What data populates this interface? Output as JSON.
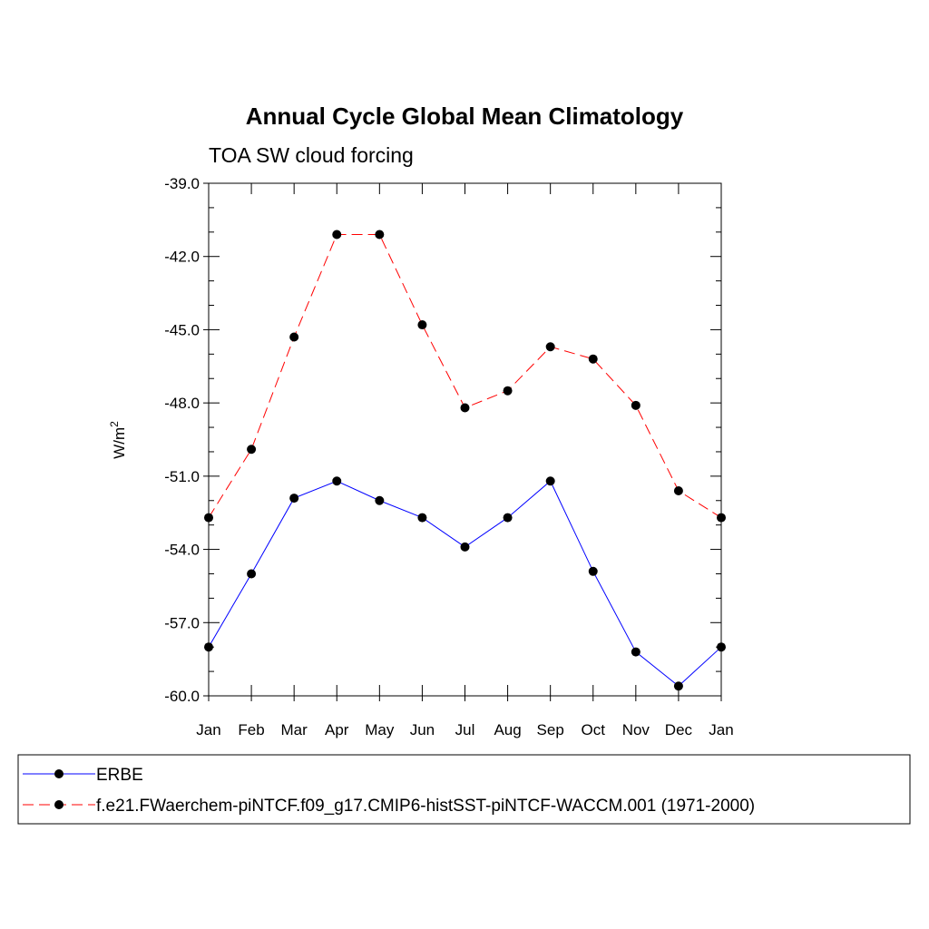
{
  "chart_data": {
    "type": "line",
    "title": "Annual Cycle Global Mean Climatology",
    "subtitle": "TOA SW cloud forcing",
    "xlabel": "",
    "ylabel": "W/m",
    "ylabel_superscript": "2",
    "categories": [
      "Jan",
      "Feb",
      "Mar",
      "Apr",
      "May",
      "Jun",
      "Jul",
      "Aug",
      "Sep",
      "Oct",
      "Nov",
      "Dec",
      "Jan"
    ],
    "ylim": [
      -60.0,
      -39.0
    ],
    "yticks": [
      -39.0,
      -42.0,
      -45.0,
      -48.0,
      -51.0,
      -54.0,
      -57.0,
      -60.0
    ],
    "ytick_labels": [
      "-39.0",
      "-42.0",
      "-45.0",
      "-48.0",
      "-51.0",
      "-54.0",
      "-57.0",
      "-60.0"
    ],
    "series": [
      {
        "name": "ERBE",
        "color": "#0000ff",
        "dash": "solid",
        "values": [
          -58.0,
          -55.0,
          -51.9,
          -51.2,
          -52.0,
          -52.7,
          -53.9,
          -52.7,
          -51.2,
          -54.9,
          -58.2,
          -59.6,
          -58.0
        ]
      },
      {
        "name": "f.e21.FWaerchem-piNTCF.f09_g17.CMIP6-histSST-piNTCF-WACCM.001 (1971-2000)",
        "color": "#ff0000",
        "dash": "dashed",
        "values": [
          -52.7,
          -49.9,
          -45.3,
          -41.1,
          -41.1,
          -44.8,
          -48.2,
          -47.5,
          -45.7,
          -46.2,
          -48.1,
          -51.6,
          -52.7
        ]
      }
    ],
    "legend_position": "bottom"
  }
}
